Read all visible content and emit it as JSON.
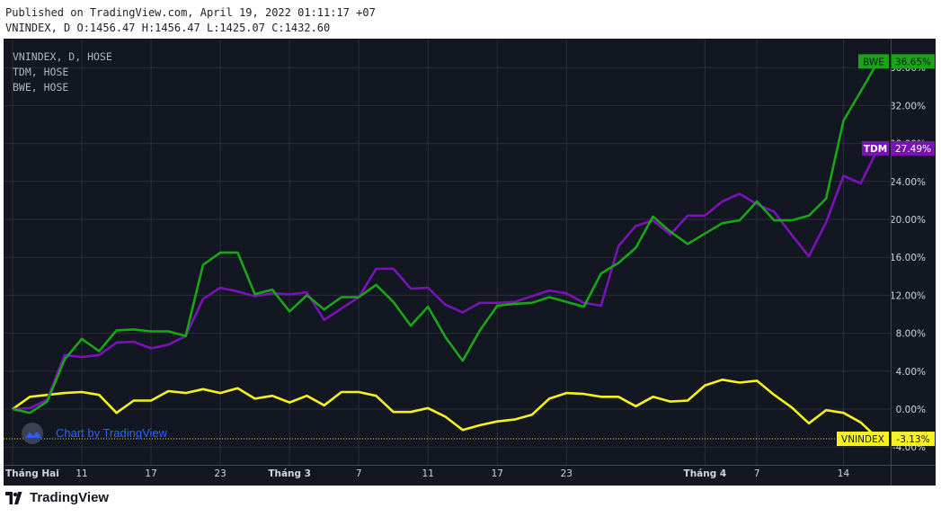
{
  "header": {
    "published": "Published on TradingView.com, April 19, 2022 01:11:17 +07",
    "ohlc": "VNINDEX, D O:1456.47 H:1456.47 L:1425.07 C:1432.60"
  },
  "legend": [
    "VNINDEX, D, HOSE",
    "TDM, HOSE",
    "BWE, HOSE"
  ],
  "watermark": "Chart by TradingView",
  "brand": "TradingView",
  "colors": {
    "background": "#131722",
    "grid": "#2a2e39",
    "axis_text": "#d1d4dc",
    "vnindex": "#f7f21e",
    "tdm": "#7b12b8",
    "bwe": "#18a615"
  },
  "chart_data": {
    "type": "line",
    "x": [
      "2022-02-07",
      "2022-02-08",
      "2022-02-09",
      "2022-02-10",
      "2022-02-11",
      "2022-02-14",
      "2022-02-15",
      "2022-02-16",
      "2022-02-17",
      "2022-02-18",
      "2022-02-21",
      "2022-02-22",
      "2022-02-23",
      "2022-02-24",
      "2022-02-25",
      "2022-02-28",
      "2022-03-01",
      "2022-03-02",
      "2022-03-03",
      "2022-03-04",
      "2022-03-07",
      "2022-03-08",
      "2022-03-09",
      "2022-03-10",
      "2022-03-11",
      "2022-03-14",
      "2022-03-15",
      "2022-03-16",
      "2022-03-17",
      "2022-03-18",
      "2022-03-21",
      "2022-03-22",
      "2022-03-23",
      "2022-03-24",
      "2022-03-25",
      "2022-03-28",
      "2022-03-29",
      "2022-03-30",
      "2022-03-31",
      "2022-04-01",
      "2022-04-04",
      "2022-04-05",
      "2022-04-06",
      "2022-04-07",
      "2022-04-08",
      "2022-04-11",
      "2022-04-12",
      "2022-04-13",
      "2022-04-14",
      "2022-04-15",
      "2022-04-18"
    ],
    "series": [
      {
        "name": "VNINDEX",
        "last_label": "-3.13%",
        "values": [
          0,
          1.3,
          1.5,
          1.7,
          1.8,
          1.5,
          -0.4,
          0.9,
          0.9,
          1.9,
          1.7,
          2.1,
          1.7,
          2.2,
          1.1,
          1.4,
          0.7,
          1.4,
          0.4,
          1.8,
          1.8,
          1.4,
          -0.3,
          -0.3,
          0.1,
          -0.8,
          -2.2,
          -1.7,
          -1.3,
          -1.1,
          -0.6,
          1.1,
          1.7,
          1.6,
          1.3,
          1.3,
          0.3,
          1.3,
          0.8,
          0.9,
          2.5,
          3.1,
          2.8,
          3.0,
          1.5,
          0.2,
          -1.5,
          -0.1,
          -0.4,
          -1.4,
          -3.13
        ]
      },
      {
        "name": "TDM",
        "last_label": "27.49%",
        "values": [
          0,
          0.1,
          1.0,
          5.7,
          5.5,
          5.7,
          7.0,
          7.1,
          6.4,
          6.8,
          7.7,
          11.6,
          12.8,
          12.4,
          11.9,
          12.2,
          12.1,
          12.3,
          9.4,
          10.6,
          11.8,
          14.8,
          14.8,
          12.7,
          12.8,
          11.0,
          10.2,
          11.2,
          11.2,
          11.3,
          11.9,
          12.5,
          12.2,
          11.2,
          10.9,
          17.2,
          19.3,
          19.9,
          18.4,
          20.4,
          20.4,
          21.9,
          22.7,
          21.6,
          20.8,
          18.4,
          16.1,
          19.7,
          24.6,
          23.8,
          27.49
        ]
      },
      {
        "name": "BWE",
        "last_label": "36.65%",
        "values": [
          0,
          -0.4,
          0.8,
          5.2,
          7.4,
          6.1,
          8.3,
          8.4,
          8.2,
          8.2,
          7.7,
          15.2,
          16.5,
          16.5,
          12.1,
          12.6,
          10.3,
          12.0,
          10.5,
          11.8,
          11.8,
          13.1,
          11.3,
          8.8,
          10.8,
          7.6,
          5.1,
          8.3,
          10.9,
          11.1,
          11.2,
          11.8,
          11.3,
          10.8,
          14.3,
          15.4,
          17.0,
          20.3,
          18.7,
          17.4,
          18.5,
          19.6,
          19.9,
          21.9,
          19.9,
          19.9,
          20.4,
          22.2,
          30.4,
          33.5,
          36.65
        ]
      }
    ],
    "x_ticks": [
      {
        "date": "2022-02-07",
        "label": "Tháng Hai",
        "bold": true
      },
      {
        "date": "2022-02-11",
        "label": "11"
      },
      {
        "date": "2022-02-17",
        "label": "17"
      },
      {
        "date": "2022-02-23",
        "label": "23"
      },
      {
        "date": "2022-03-01",
        "label": "Tháng 3",
        "bold": true
      },
      {
        "date": "2022-03-07",
        "label": "7"
      },
      {
        "date": "2022-03-11",
        "label": "11"
      },
      {
        "date": "2022-03-17",
        "label": "17"
      },
      {
        "date": "2022-03-23",
        "label": "23"
      },
      {
        "date": "2022-04-04",
        "label": "Tháng 4",
        "bold": true
      },
      {
        "date": "2022-04-07",
        "label": "7"
      },
      {
        "date": "2022-04-14",
        "label": "14"
      }
    ],
    "y_ticks": [
      -4,
      0,
      4,
      8,
      12,
      16,
      20,
      24,
      28,
      32,
      36
    ],
    "y_tick_labels": [
      "-4.00%",
      "0.00%",
      "4.00%",
      "8.00%",
      "12.00%",
      "16.00%",
      "20.00%",
      "24.00%",
      "28.00%",
      "32.00%",
      "36.00%"
    ],
    "ylim": [
      -4,
      38
    ],
    "grid": true
  }
}
